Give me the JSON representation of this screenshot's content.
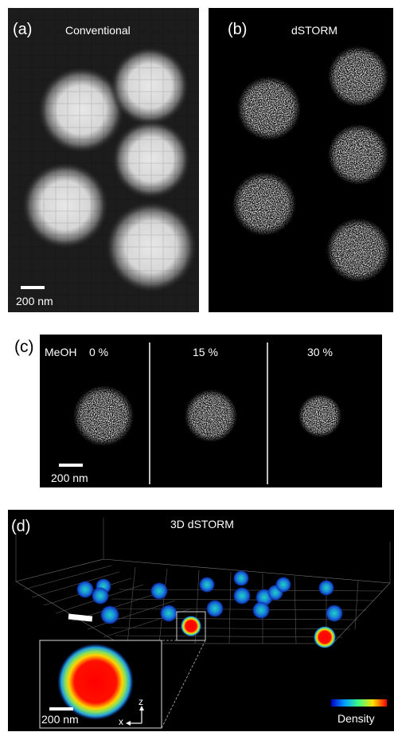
{
  "panel_a": {
    "label": "(a)",
    "title": "Conventional",
    "scale": "200 nm"
  },
  "panel_b": {
    "label": "(b)",
    "title": "dSTORM"
  },
  "panel_c": {
    "label": "(c)",
    "solvent": "MeOH",
    "conditions": [
      "0 %",
      "15 %",
      "30 %"
    ],
    "scale": "200 nm"
  },
  "panel_d": {
    "label": "(d)",
    "title": "3D dSTORM",
    "inset_scale": "200 nm",
    "axis_z": "z",
    "axis_x": "x",
    "colorbar_label": "Density"
  },
  "colors": {
    "background": "#000000",
    "panel_bg": "#000000",
    "text": "#ffffff"
  }
}
